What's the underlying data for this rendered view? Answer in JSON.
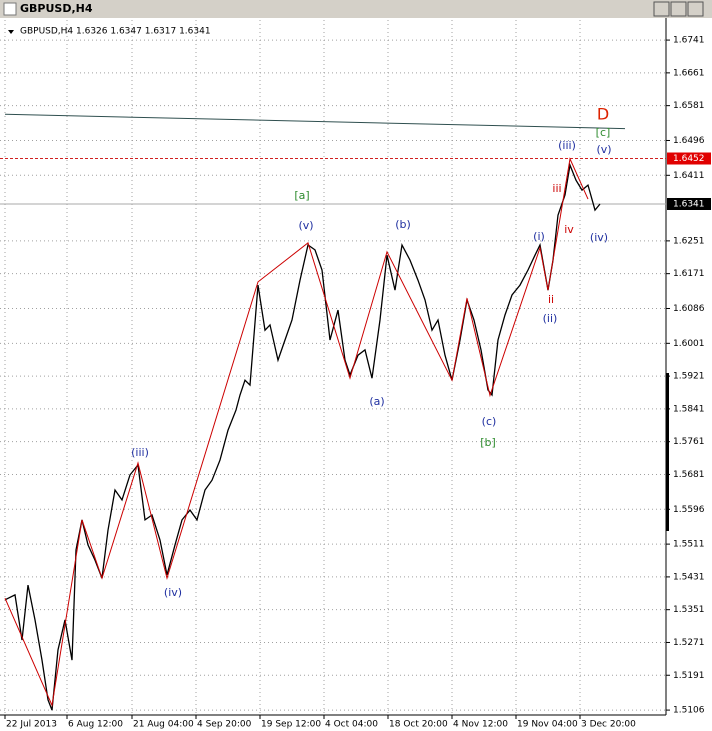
{
  "chart_data": {
    "type": "line",
    "title": "GBPUSD,H4",
    "subtitle": "GBPUSD,H4  1.6326 1.6347 1.6317 1.6341",
    "xlim": [
      -5,
      661
    ],
    "ylim": [
      1.5094,
      1.679
    ],
    "xticks": [
      {
        "value": 0,
        "label": "22 Jul 2013"
      },
      {
        "value": 62,
        "label": "6 Aug 12:00"
      },
      {
        "value": 127,
        "label": "21 Aug 04:00"
      },
      {
        "value": 191,
        "label": "4 Sep 20:00"
      },
      {
        "value": 255,
        "label": "19 Sep 12:00"
      },
      {
        "value": 319,
        "label": "4 Oct 04:00"
      },
      {
        "value": 383,
        "label": "18 Oct 20:00"
      },
      {
        "value": 447,
        "label": "4 Nov 12:00"
      },
      {
        "value": 511,
        "label": "19 Nov 04:00"
      },
      {
        "value": 575,
        "label": "3 Dec 20:00"
      }
    ],
    "yticks": [
      1.6741,
      1.6661,
      1.6581,
      1.6496,
      1.6411,
      1.6251,
      1.6171,
      1.6086,
      1.6001,
      1.5921,
      1.5841,
      1.5761,
      1.5681,
      1.5596,
      1.5511,
      1.5431,
      1.5351,
      1.5271,
      1.5191,
      1.5106
    ],
    "grid": true,
    "series": [
      {
        "name": "GBPUSD",
        "color": "#000000",
        "x": [
          0,
          10,
          17,
          23,
          30,
          37,
          43,
          47,
          53,
          60,
          67,
          71,
          77,
          83,
          90,
          97,
          103,
          110,
          117,
          125,
          133,
          140,
          147,
          155,
          162,
          170,
          177,
          185,
          192,
          200,
          207,
          215,
          223,
          231,
          235,
          240,
          245,
          253,
          260,
          265,
          273,
          280,
          287,
          295,
          303,
          310,
          317,
          325,
          333,
          340,
          345,
          353,
          360,
          367,
          375,
          382,
          390,
          397,
          405,
          413,
          420,
          427,
          433,
          440,
          447,
          455,
          462,
          469,
          476,
          483,
          487,
          493,
          500,
          507,
          515,
          523,
          530,
          535,
          543,
          548,
          553,
          560,
          565,
          571,
          577,
          583,
          590,
          595
        ],
        "values": [
          1.5375,
          1.5387,
          1.5277,
          1.5411,
          1.5326,
          1.5228,
          1.5131,
          1.5106,
          1.5253,
          1.5326,
          1.5228,
          1.5497,
          1.557,
          1.5509,
          1.5472,
          1.5428,
          1.5545,
          1.5643,
          1.5619,
          1.568,
          1.5704,
          1.557,
          1.5582,
          1.5521,
          1.5436,
          1.5509,
          1.557,
          1.5594,
          1.557,
          1.5643,
          1.5667,
          1.5716,
          1.5789,
          1.5838,
          1.5875,
          1.5911,
          1.5899,
          1.6143,
          1.6033,
          1.6046,
          1.596,
          1.6009,
          1.6058,
          1.6155,
          1.6241,
          1.6229,
          1.618,
          1.6009,
          1.6082,
          1.596,
          1.5924,
          1.5972,
          1.5985,
          1.5916,
          1.6058,
          1.6216,
          1.6131,
          1.6241,
          1.6204,
          1.6155,
          1.6107,
          1.6033,
          1.6058,
          1.5972,
          1.5911,
          1.6009,
          1.6107,
          1.6058,
          1.5985,
          1.5887,
          1.5875,
          1.6009,
          1.607,
          1.6119,
          1.6143,
          1.618,
          1.6216,
          1.6241,
          1.6131,
          1.6204,
          1.6314,
          1.6363,
          1.6436,
          1.6399,
          1.6375,
          1.6387,
          1.6326,
          1.6341
        ]
      },
      {
        "name": "Zigzag",
        "color": "#cc0000",
        "x": [
          0,
          47,
          77,
          97,
          133,
          162,
          253,
          303,
          345,
          382,
          447,
          462,
          485,
          535,
          543,
          565,
          583
        ],
        "values": [
          1.5379,
          1.5118,
          1.557,
          1.5428,
          1.5709,
          1.5428,
          1.6151,
          1.6246,
          1.5916,
          1.6224,
          1.5911,
          1.6111,
          1.5874,
          1.6234,
          1.6131,
          1.6451,
          1.6353
        ]
      }
    ],
    "trendline": {
      "x": [
        0,
        620
      ],
      "values": [
        1.656,
        1.6525
      ],
      "color": "#2f4f4f"
    },
    "ask_line": 1.6452,
    "last_price": 1.6341,
    "annotations": [
      {
        "text": "(iii)",
        "color": "#1f2fa0"
      },
      {
        "text": "(iv)",
        "color": "#1f2fa0"
      },
      {
        "text": "[a]",
        "color": "#2e8b2e"
      },
      {
        "text": "(v)",
        "color": "#1f2fa0"
      },
      {
        "text": "(b)",
        "color": "#1f2fa0"
      },
      {
        "text": "(a)",
        "color": "#1f2fa0"
      },
      {
        "text": "(c)",
        "color": "#1f2fa0"
      },
      {
        "text": "[b]",
        "color": "#2e8b2e"
      },
      {
        "text": "(i)",
        "color": "#1f2fa0"
      },
      {
        "text": "ii",
        "color": "#cc0000"
      },
      {
        "text": "(ii)",
        "color": "#1f2fa0"
      },
      {
        "text": "iii",
        "color": "#cc0000"
      },
      {
        "text": "iv",
        "color": "#cc0000"
      },
      {
        "text": "(iii)",
        "color": "#1f2fa0"
      },
      {
        "text": "(iv)",
        "color": "#1f2fa0"
      },
      {
        "text": "(v)",
        "color": "#1f2fa0"
      },
      {
        "text": "[c]",
        "color": "#2e8b2e"
      },
      {
        "text": "D",
        "color": "#dd2200"
      }
    ]
  }
}
